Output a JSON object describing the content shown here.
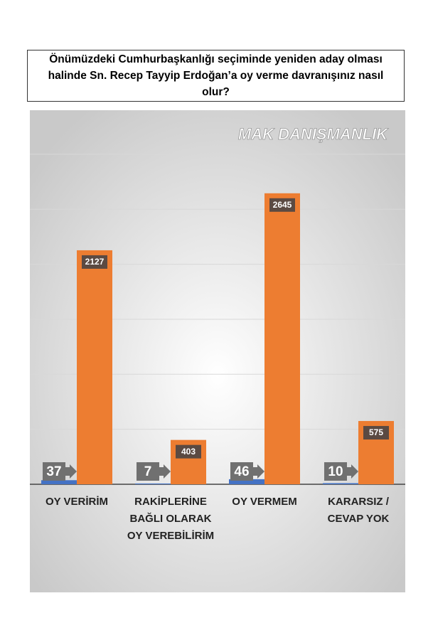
{
  "chart_data": {
    "type": "bar",
    "title": "Önümüzdeki Cumhurbaşkanlığı seçiminde yeniden aday olması halinde Sn. Recep Tayyip Erdoğan’a oy verme davranışınız nasıl olur?",
    "watermark": "MAK DANIŞMANLIK",
    "categories": [
      "OY VERİRİM",
      "RAKİPLERİNE BAĞLI OLARAK OY VEREBİLİRİM",
      "OY VERMEM",
      "KARARSIZ / CEVAP YOK"
    ],
    "series": [
      {
        "color": "#4472c4",
        "values": [
          37,
          7,
          46,
          10
        ]
      },
      {
        "color": "#ed7d31",
        "values": [
          2127,
          403,
          2645,
          575
        ]
      }
    ],
    "ylim": [
      0,
      3400
    ],
    "yticks": [
      0,
      500,
      1000,
      1500,
      2000,
      2500,
      3000
    ],
    "grid": true
  }
}
